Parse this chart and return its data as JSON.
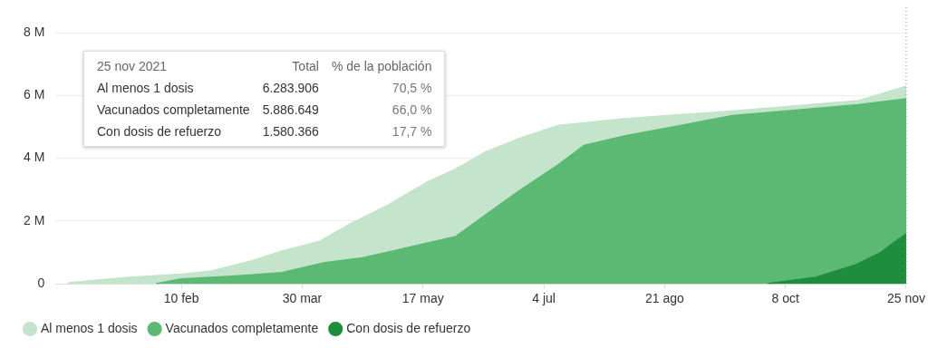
{
  "chart_data": {
    "type": "area",
    "xlim": [
      "2020-12-22",
      "2021-11-25"
    ],
    "xticks": [
      {
        "value": "2021-02-10",
        "label": "10 feb"
      },
      {
        "value": "2021-03-30",
        "label": "30 mar"
      },
      {
        "value": "2021-05-17",
        "label": "17 may"
      },
      {
        "value": "2021-07-04",
        "label": "4 jul"
      },
      {
        "value": "2021-08-21",
        "label": "21 ago"
      },
      {
        "value": "2021-10-08",
        "label": "8 oct"
      },
      {
        "value": "2021-11-25",
        "label": "25 nov"
      }
    ],
    "ylim": [
      0,
      8000000
    ],
    "yticks": [
      {
        "value": 0,
        "label": "0"
      },
      {
        "value": 2000000,
        "label": "2 M"
      },
      {
        "value": 4000000,
        "label": "4 M"
      },
      {
        "value": 6000000,
        "label": "6 M"
      },
      {
        "value": 8000000,
        "label": "8 M"
      }
    ],
    "grid": "y",
    "legend": "bottom left",
    "marker": "none",
    "series": [
      {
        "name": "Al menos 1 dosis",
        "color": "#c4e5cb",
        "x": [
          "2020-12-27",
          "2021-01-20",
          "2021-02-10",
          "2021-02-22",
          "2021-03-10",
          "2021-03-22",
          "2021-04-06",
          "2021-04-18",
          "2021-05-03",
          "2021-05-19",
          "2021-05-30",
          "2021-06-11",
          "2021-06-25",
          "2021-07-10",
          "2021-08-05",
          "2021-09-17",
          "2021-11-06",
          "2021-11-25"
        ],
        "values": [
          30000,
          200000,
          300000,
          400000,
          730000,
          1040000,
          1350000,
          1900000,
          2500000,
          3250000,
          3650000,
          4200000,
          4650000,
          5040000,
          5250000,
          5500000,
          5830000,
          6283906
        ]
      },
      {
        "name": "Vacunados completamente",
        "color": "#5bb974",
        "x": [
          "2021-01-31",
          "2021-02-10",
          "2021-03-05",
          "2021-03-22",
          "2021-04-08",
          "2021-04-23",
          "2021-05-05",
          "2021-05-19",
          "2021-05-30",
          "2021-06-11",
          "2021-06-25",
          "2021-07-10",
          "2021-07-20",
          "2021-08-05",
          "2021-09-17",
          "2021-10-08",
          "2021-11-06",
          "2021-11-25"
        ],
        "values": [
          0,
          150000,
          250000,
          350000,
          670000,
          820000,
          1040000,
          1300000,
          1500000,
          2200000,
          3000000,
          3800000,
          4400000,
          4700000,
          5350000,
          5500000,
          5700000,
          5886649
        ]
      },
      {
        "name": "Con dosis de refuerzo",
        "color": "#1e8e3e",
        "x": [
          "2021-10-01",
          "2021-10-20",
          "2021-11-05",
          "2021-11-15",
          "2021-11-20",
          "2021-11-25"
        ],
        "values": [
          0,
          200000,
          600000,
          1000000,
          1300000,
          1580366
        ]
      }
    ],
    "ref_lines": [
      {
        "axis": "x",
        "value": "2021-11-25",
        "label": null,
        "color": "#888888",
        "line_style": "dotted"
      }
    ],
    "annotations": [
      "25 nov 2021",
      "Total",
      "% de la población",
      "Al menos 1 dosis",
      "6.283.906",
      "70,5 %",
      "Vacunados completamente",
      "5.886.649",
      "66,0 %",
      "Con dosis de refuerzo",
      "1.580.366",
      "17,7 %"
    ]
  }
}
